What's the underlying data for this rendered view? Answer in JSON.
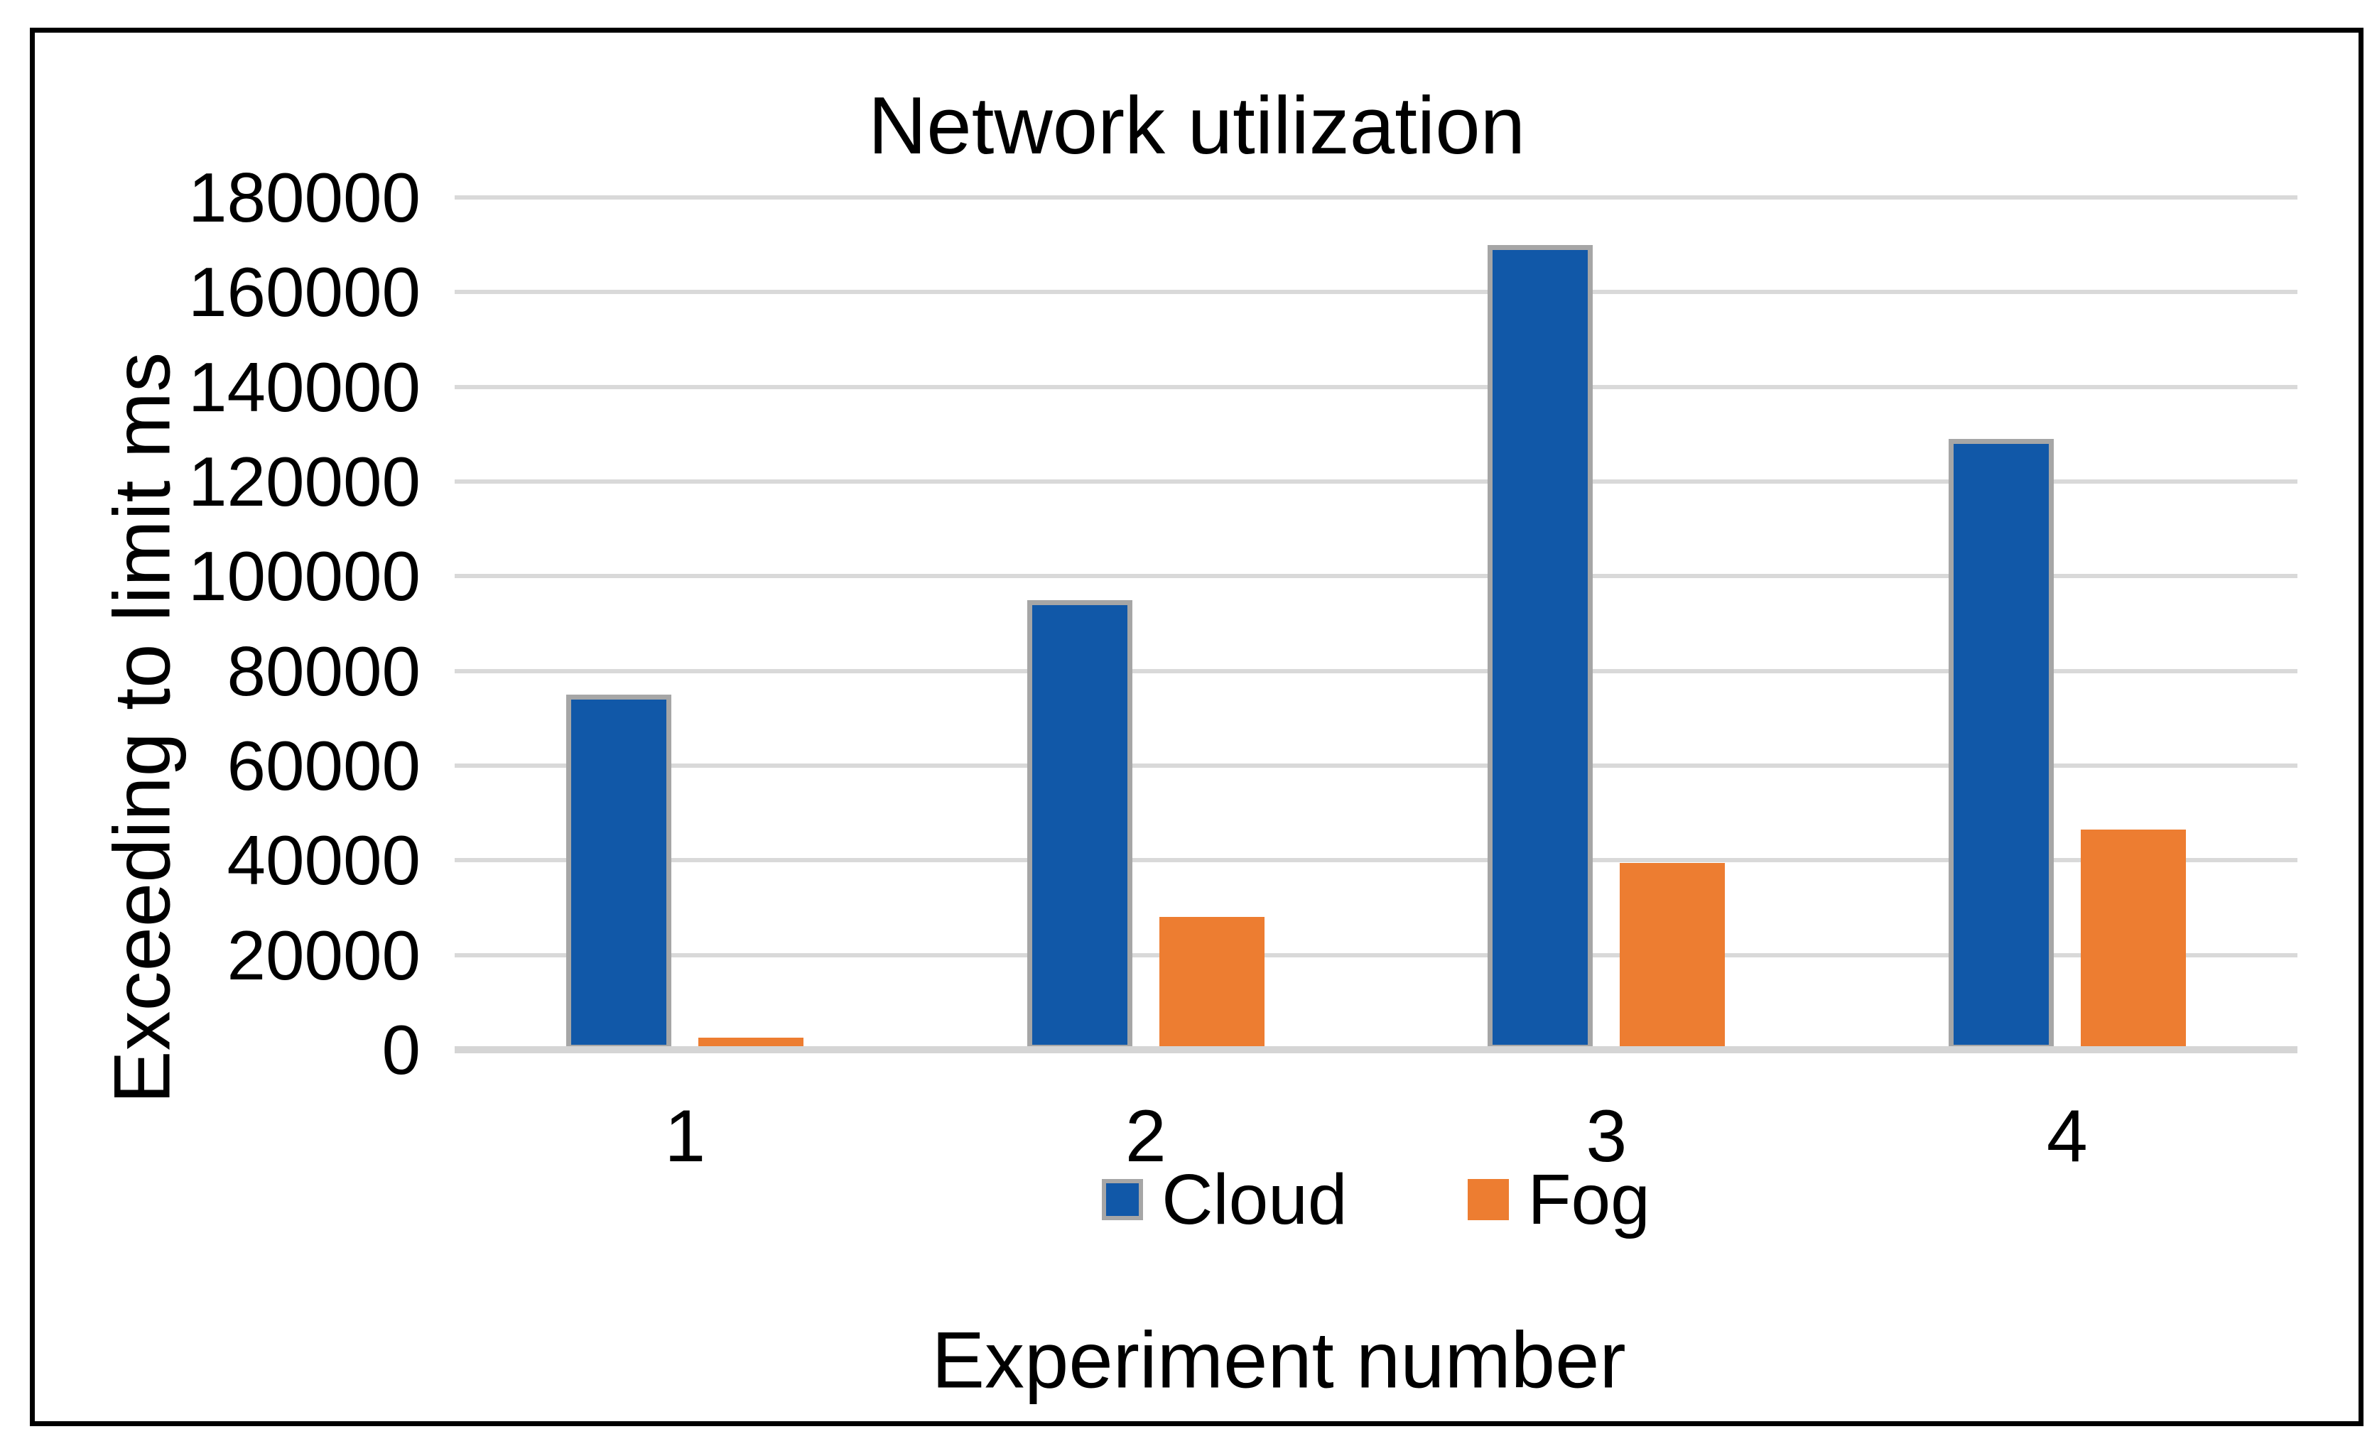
{
  "chart_data": {
    "type": "bar",
    "title": "Network utilization",
    "xlabel": "Experiment number",
    "ylabel": "Exceeding to limit ms",
    "categories": [
      "1",
      "2",
      "3",
      "4"
    ],
    "series": [
      {
        "name": "Cloud",
        "color": "#1158A8",
        "values": [
          75000,
          95000,
          170000,
          129000
        ]
      },
      {
        "name": "Fog",
        "color": "#ED7D31",
        "values": [
          2500,
          28000,
          39500,
          46500
        ]
      }
    ],
    "ylim": [
      0,
      180000
    ],
    "ytick_step": 20000,
    "ytick_labels": [
      "0",
      "20000",
      "40000",
      "60000",
      "80000",
      "100000",
      "120000",
      "140000",
      "160000",
      "180000"
    ],
    "grid": true,
    "legend_position": "bottom"
  },
  "legend": {
    "cloud_label": "Cloud",
    "fog_label": "Fog"
  },
  "colors": {
    "cloud": "#1158A8",
    "fog": "#ED7D31",
    "gridline": "#D9D9D9",
    "bar_outline": "#A6A6A6",
    "frame_border": "#000000"
  }
}
